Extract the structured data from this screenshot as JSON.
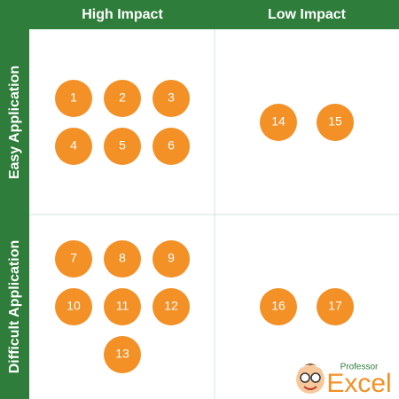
{
  "columns": [
    "High Impact",
    "Low Impact"
  ],
  "rows": [
    "Easy Application",
    "Difficult Application"
  ],
  "quadrants": [
    {
      "items": [
        "1",
        "2",
        "3",
        "4",
        "5",
        "6"
      ]
    },
    {
      "items": [
        "14",
        "15"
      ]
    },
    {
      "items": [
        "7",
        "8",
        "9",
        "10",
        "11",
        "12",
        "13"
      ]
    },
    {
      "items": [
        "16",
        "17"
      ]
    }
  ],
  "logo": {
    "small": "Professor",
    "large": "Excel"
  }
}
